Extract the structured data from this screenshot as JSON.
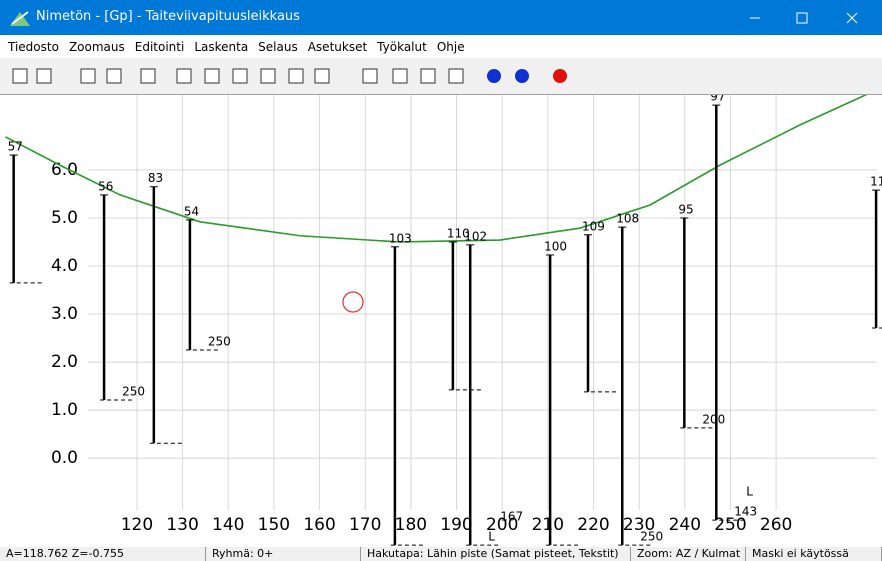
{
  "window": {
    "title": "Nimetön - [Gp] - Taiteviivapituusleikkaus"
  },
  "menu": [
    "Tiedosto",
    "Zoomaus",
    "Editointi",
    "Laskenta",
    "Selaus",
    "Asetukset",
    "Työkalut",
    "Ohje"
  ],
  "drawing": {
    "xlim": [
      91.1,
      282.1
    ],
    "ylim": [
      -1.85,
      7.56
    ],
    "xticks": [
      120,
      130,
      140,
      150,
      160,
      170,
      180,
      190,
      200,
      210,
      220,
      230,
      240,
      250,
      260
    ],
    "yticks": [
      {
        "value": 6,
        "label": "6.0"
      },
      {
        "value": 5,
        "label": "5.0"
      },
      {
        "value": 4,
        "label": "4.0"
      },
      {
        "value": 3,
        "label": "3.0"
      },
      {
        "value": 2,
        "label": "2.0"
      },
      {
        "value": 1,
        "label": "1.0"
      },
      {
        "value": 0,
        "label": "0.0"
      }
    ],
    "ground": {
      "x": [
        91.2,
        103.1,
        116.3,
        133.8,
        155.7,
        177.6,
        199.5,
        217.1,
        232.4,
        247.7,
        265.3,
        282.1
      ],
      "z": [
        6.69,
        6.1,
        5.48,
        4.92,
        4.63,
        4.5,
        4.54,
        4.79,
        5.27,
        6.1,
        6.94,
        7.67
      ]
    },
    "boreholes": [
      {
        "name": "57",
        "x": 93.0,
        "top": 6.31,
        "bottom": 3.65
      },
      {
        "name": "56",
        "x": 112.8,
        "top": 5.48,
        "bottom": 1.21,
        "notes": [
          "250"
        ]
      },
      {
        "name": "83",
        "x": 123.7,
        "top": 5.65,
        "bottom": 0.31
      },
      {
        "name": "54",
        "x": 131.6,
        "top": 4.96,
        "bottom": 2.25,
        "notes": [
          "250"
        ]
      },
      {
        "name": "103",
        "x": 176.5,
        "top": 4.4,
        "bottom": -1.81
      },
      {
        "name": "110",
        "x": 189.2,
        "top": 4.5,
        "bottom": 1.42
      },
      {
        "name": "102",
        "x": 193.0,
        "top": 4.44,
        "bottom": -1.81,
        "notes": [
          "L",
          "167"
        ]
      },
      {
        "name": "100",
        "x": 210.5,
        "top": 4.23,
        "bottom": -1.81
      },
      {
        "name": "109",
        "x": 218.8,
        "top": 4.65,
        "bottom": 1.38
      },
      {
        "name": "108",
        "x": 226.3,
        "top": 4.81,
        "bottom": -1.81,
        "notes": [
          "250"
        ]
      },
      {
        "name": "95",
        "x": 239.9,
        "top": 5.0,
        "bottom": 0.63,
        "notes": [
          "200"
        ]
      },
      {
        "name": "97",
        "x": 246.9,
        "top": 7.35,
        "bottom": -1.29,
        "notes": [
          "143",
          "L"
        ]
      },
      {
        "name": "11",
        "x": 281.9,
        "top": 5.58,
        "bottom": 2.71
      }
    ]
  },
  "status": [
    "A=118.762  Z=-0.755",
    "Ryhmä: 0+",
    "Hakutapa: Lähin piste (Samat pisteet, Tekstit)",
    "Zoom: AZ  /  Kulmat",
    "Maski ei käytössä"
  ]
}
